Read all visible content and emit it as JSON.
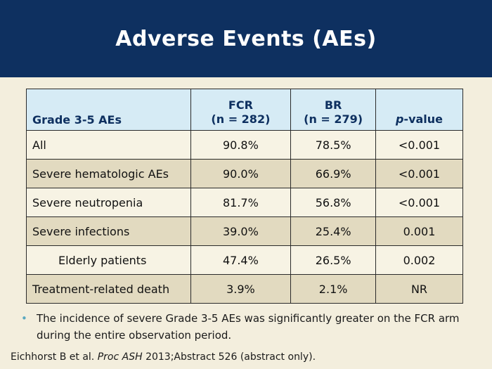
{
  "slide": {
    "title": "Adverse Events (AEs)"
  },
  "table": {
    "headers": {
      "col1": "Grade 3-5 AEs",
      "col2_line1": "FCR",
      "col2_line2": "(n = 282)",
      "col3_line1": "BR",
      "col3_line2": "(n = 279)",
      "col4_italic": "p",
      "col4_rest": "-value"
    },
    "rows": [
      {
        "label": "All",
        "fcr": "90.8%",
        "br": "78.5%",
        "p": "<0.001"
      },
      {
        "label": "Severe hematologic AEs",
        "fcr": "90.0%",
        "br": "66.9%",
        "p": "<0.001"
      },
      {
        "label": "Severe neutropenia",
        "fcr": "81.7%",
        "br": "56.8%",
        "p": "<0.001"
      },
      {
        "label": "Severe infections",
        "fcr": "39.0%",
        "br": "25.4%",
        "p": "0.001"
      },
      {
        "label": "Elderly patients",
        "fcr": "47.4%",
        "br": "26.5%",
        "p": "0.002"
      },
      {
        "label": "Treatment-related death",
        "fcr": "3.9%",
        "br": "2.1%",
        "p": "NR"
      }
    ]
  },
  "bullet": {
    "text": "The incidence of severe Grade 3-5 AEs was significantly greater on the FCR arm during the entire observation period."
  },
  "footnote": {
    "authors": "Eichhorst B et al.",
    "journal": "Proc ASH",
    "rest": "2013;Abstract 526 (abstract only)."
  },
  "colors": {
    "header_bg": "#0e3060",
    "table_header_bg": "#d6ebf5",
    "row_light": "#f7f3e4",
    "row_dark": "#e2dac0",
    "bullet_dot": "#5aa8c0",
    "page_bg": "#f3eedd"
  },
  "icons": {
    "bullet": "bullet-dot-icon"
  }
}
